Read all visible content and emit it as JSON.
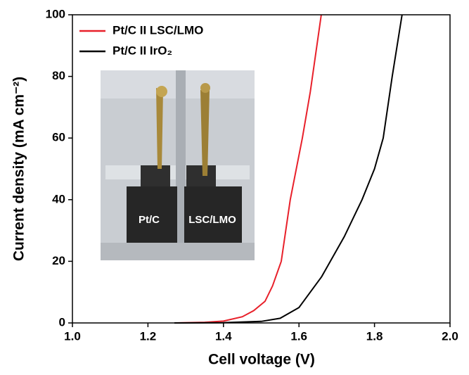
{
  "chart_data": {
    "type": "line",
    "xlabel": "Cell voltage (V)",
    "ylabel": "Current density (mA cm⁻²)",
    "xlim": [
      1.0,
      2.0
    ],
    "xticks": [
      {
        "value": 1.0,
        "label": "1.0"
      },
      1.2,
      1.4,
      1.6,
      1.8,
      {
        "value": 2.0,
        "label": "2.0"
      }
    ],
    "ylim": [
      0,
      100
    ],
    "yticks": [
      0,
      20,
      40,
      60,
      80,
      100
    ],
    "legend": "upper left",
    "annotations": [
      "Pt/C",
      "LSC/LMO"
    ],
    "series": [
      {
        "name": "Pt/C II LSC/LMO",
        "color": "#e8202a",
        "x": [
          1.27,
          1.35,
          1.4,
          1.45,
          1.48,
          1.51,
          1.53,
          1.553,
          1.577,
          1.609,
          1.63,
          1.645,
          1.659
        ],
        "values": [
          0,
          0.2,
          0.6,
          2,
          4,
          7,
          12,
          20,
          40,
          60,
          75,
          88,
          100
        ]
      },
      {
        "name": "Pt/C II IrO₂",
        "color": "#000000",
        "x": [
          1.27,
          1.4,
          1.5,
          1.55,
          1.6,
          1.63,
          1.66,
          1.683,
          1.72,
          1.767,
          1.8,
          1.823,
          1.847,
          1.873
        ],
        "values": [
          0,
          0.1,
          0.5,
          1.5,
          5,
          10,
          15,
          20,
          28,
          40,
          50,
          60,
          80,
          100
        ]
      }
    ]
  }
}
